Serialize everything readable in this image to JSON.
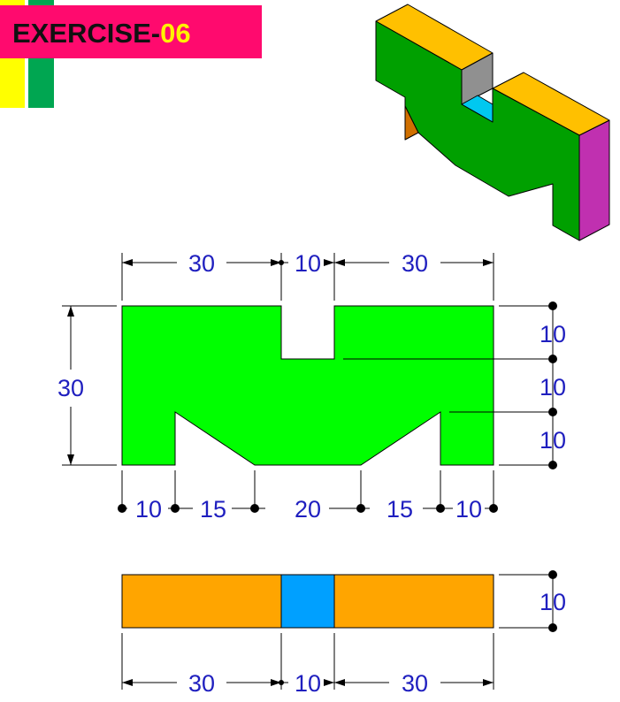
{
  "title": {
    "prefix": "EXERCISE-",
    "number": "06"
  },
  "colors": {
    "banner": "#ff0a6e",
    "title_number": "#fff200",
    "accent_yellow": "#ffff00",
    "accent_green": "#00a651",
    "front_face": "#00ff00",
    "iso_front": "#00a000",
    "iso_top": "#ffc000",
    "iso_side": "#c030b0",
    "iso_slot_wall": "#909090",
    "iso_slot_floor": "#00c8f0",
    "iso_under": "#d07000",
    "bottom_face": "#ffa500",
    "bottom_slot": "#00a0ff",
    "dimension": "#1f1fbf"
  },
  "front_view": {
    "top_dims": [
      "30",
      "10",
      "30"
    ],
    "left_height": "30",
    "right_dims": [
      "10",
      "10",
      "10"
    ],
    "bottom_dims": [
      "10",
      "15",
      "20",
      "15",
      "10"
    ]
  },
  "bottom_view": {
    "right_height": "10",
    "bottom_dims": [
      "30",
      "10",
      "30"
    ]
  }
}
